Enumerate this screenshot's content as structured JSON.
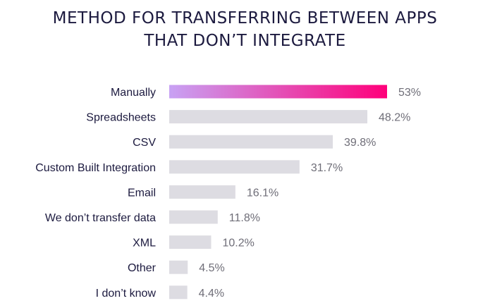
{
  "colors": {
    "title": "#1c1a3f",
    "category_text": "#1c1a3f",
    "value_text": "#6f6e78",
    "bar_default": "#dddce2",
    "bar_highlight_start": "#c8a2f4",
    "bar_highlight_end": "#ff007a"
  },
  "chart_data": {
    "type": "bar",
    "orientation": "horizontal",
    "title": "METHOD FOR TRANSFERRING BETWEEN APPS THAT DON’T INTEGRATE",
    "title_lines": [
      "METHOD FOR TRANSFERRING BETWEEN APPS",
      "THAT DON’T INTEGRATE"
    ],
    "categories": [
      "Manually",
      "Spreadsheets",
      "CSV",
      "Custom Built Integration",
      "Email",
      "We don’t transfer data",
      "XML",
      "Other",
      "I don’t know"
    ],
    "values": [
      53,
      48.2,
      39.8,
      31.7,
      16.1,
      11.8,
      10.2,
      4.5,
      4.4
    ],
    "value_labels": [
      "53%",
      "48.2%",
      "39.8%",
      "31.7%",
      "16.1%",
      "11.8%",
      "10.2%",
      "4.5%",
      "4.4%"
    ],
    "unit": "%",
    "highlight_index": 0,
    "xlim": [
      0,
      100
    ],
    "grid": false,
    "legend": "none"
  }
}
